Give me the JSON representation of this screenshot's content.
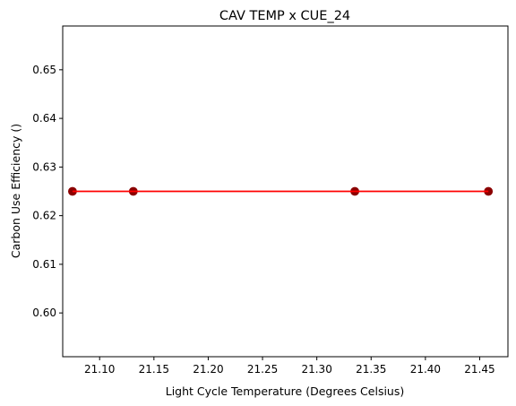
{
  "chart_data": {
    "type": "scatter",
    "title": "CAV TEMP x CUE_24",
    "xlabel": "Light Cycle Temperature (Degrees Celsius)",
    "ylabel": "Carbon Use Efficiency ()",
    "xlim": [
      21.066,
      21.476
    ],
    "ylim": [
      0.591,
      0.659
    ],
    "xticks": [
      "21.10",
      "21.15",
      "21.20",
      "21.25",
      "21.30",
      "21.35",
      "21.40",
      "21.45"
    ],
    "yticks": [
      "0.60",
      "0.61",
      "0.62",
      "0.63",
      "0.64",
      "0.65"
    ],
    "grid": false,
    "series": [
      {
        "marker_color": "#8b0000",
        "line_color": "#ff0000",
        "x": [
          21.075,
          21.131,
          21.335,
          21.458
        ],
        "y": [
          0.625,
          0.625,
          0.625,
          0.625
        ]
      }
    ],
    "fit_line": {
      "color": "#ff0000",
      "x": [
        21.075,
        21.458
      ],
      "y": [
        0.625,
        0.625
      ]
    }
  }
}
